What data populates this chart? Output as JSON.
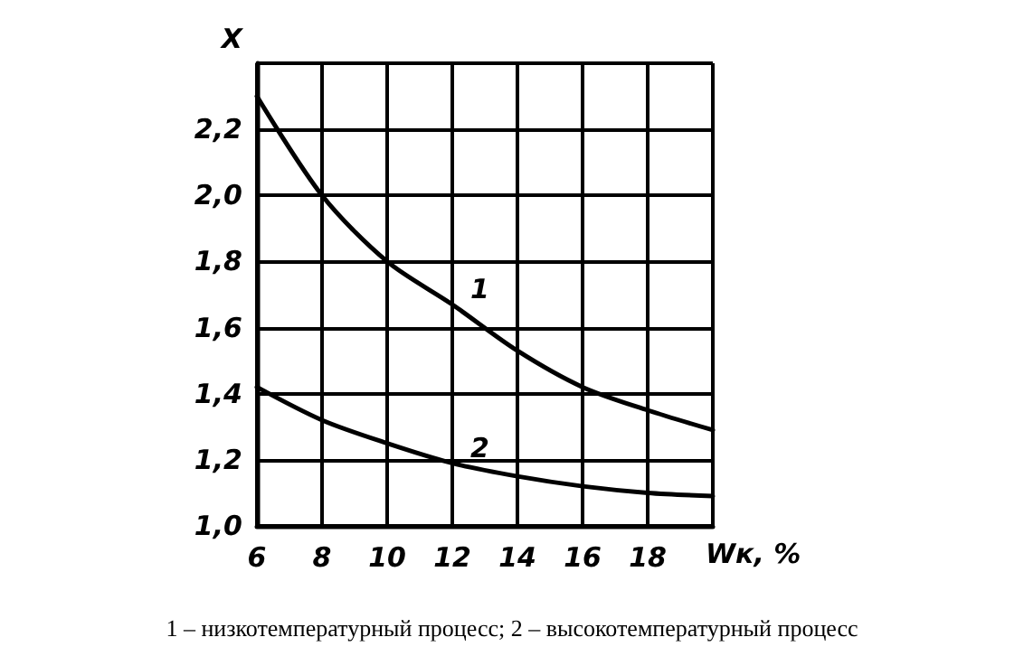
{
  "chart_data": {
    "type": "line",
    "xlabel": "Wк, %",
    "ylabel": "X",
    "annotations": [
      "1 – низкотемпературный процесс; 2 – высокотемпературный процесс"
    ],
    "x": [
      6,
      8,
      10,
      12,
      14,
      16,
      18,
      20
    ],
    "series": [
      {
        "name": "1",
        "color": "#000000",
        "values": [
          2.3,
          2.0,
          1.8,
          1.67,
          1.53,
          1.42,
          1.35,
          1.29
        ]
      },
      {
        "name": "2",
        "color": "#000000",
        "values": [
          1.42,
          1.32,
          1.25,
          1.19,
          1.15,
          1.12,
          1.1,
          1.09
        ]
      }
    ],
    "xlim": [
      6,
      20
    ],
    "xticks": [
      6,
      8,
      10,
      12,
      14,
      16,
      18,
      {
        "value": 20,
        "label": null
      }
    ],
    "ylim": [
      1.0,
      2.4
    ],
    "yticks": [
      {
        "value": 1.0,
        "label": "1,0"
      },
      {
        "value": 1.2,
        "label": "1,2"
      },
      {
        "value": 1.4,
        "label": "1,4"
      },
      {
        "value": 1.6,
        "label": "1,6"
      },
      {
        "value": 1.8,
        "label": "1,8"
      },
      {
        "value": 2.0,
        "label": "2,0"
      },
      {
        "value": 2.2,
        "label": "2,2"
      },
      {
        "value": 2.4,
        "label": null
      }
    ],
    "grid": true,
    "legend": false,
    "marker": "none",
    "line_style": "solid"
  }
}
